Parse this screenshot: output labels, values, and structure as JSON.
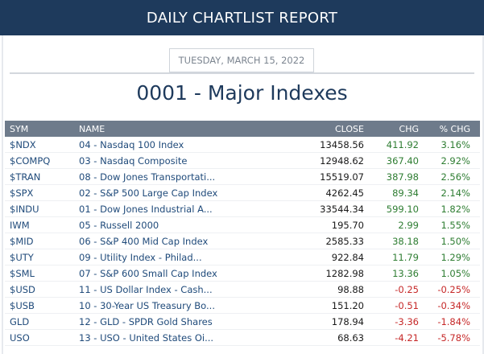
{
  "header": {
    "title": "DAILY CHARTLIST REPORT"
  },
  "report": {
    "date": "TUESDAY, MARCH 15, 2022",
    "title": "0001 - Major Indexes"
  },
  "table": {
    "columns": {
      "sym": "SYM",
      "name": "NAME",
      "close": "CLOSE",
      "chg": "CHG",
      "pct": "% CHG"
    },
    "rows": [
      {
        "sym": "$NDX",
        "name": "04 - Nasdaq 100 Index",
        "close": "13458.56",
        "chg": "411.92",
        "pct": "3.16%",
        "dir": "pos"
      },
      {
        "sym": "$COMPQ",
        "name": "03 - Nasdaq Composite",
        "close": "12948.62",
        "chg": "367.40",
        "pct": "2.92%",
        "dir": "pos"
      },
      {
        "sym": "$TRAN",
        "name": "08 - Dow Jones Transportati...",
        "close": "15519.07",
        "chg": "387.98",
        "pct": "2.56%",
        "dir": "pos"
      },
      {
        "sym": "$SPX",
        "name": "02 - S&P 500 Large Cap Index",
        "close": "4262.45",
        "chg": "89.34",
        "pct": "2.14%",
        "dir": "pos"
      },
      {
        "sym": "$INDU",
        "name": "01 - Dow Jones Industrial A...",
        "close": "33544.34",
        "chg": "599.10",
        "pct": "1.82%",
        "dir": "pos"
      },
      {
        "sym": "IWM",
        "name": "05 - Russell 2000",
        "close": "195.70",
        "chg": "2.99",
        "pct": "1.55%",
        "dir": "pos"
      },
      {
        "sym": "$MID",
        "name": "06 - S&P 400 Mid Cap Index",
        "close": "2585.33",
        "chg": "38.18",
        "pct": "1.50%",
        "dir": "pos"
      },
      {
        "sym": "$UTY",
        "name": "09 - Utility Index - Philad...",
        "close": "922.84",
        "chg": "11.79",
        "pct": "1.29%",
        "dir": "pos"
      },
      {
        "sym": "$SML",
        "name": "07 - S&P 600 Small Cap Index",
        "close": "1282.98",
        "chg": "13.36",
        "pct": "1.05%",
        "dir": "pos"
      },
      {
        "sym": "$USD",
        "name": "11 - US Dollar Index - Cash...",
        "close": "98.88",
        "chg": "-0.25",
        "pct": "-0.25%",
        "dir": "neg"
      },
      {
        "sym": "$USB",
        "name": "10 - 30-Year US Treasury Bo...",
        "close": "151.20",
        "chg": "-0.51",
        "pct": "-0.34%",
        "dir": "neg"
      },
      {
        "sym": "GLD",
        "name": "12 - GLD - SPDR Gold Shares",
        "close": "178.94",
        "chg": "-3.36",
        "pct": "-1.84%",
        "dir": "neg"
      },
      {
        "sym": "USO",
        "name": "13 - USO - United States Oi...",
        "close": "68.63",
        "chg": "-4.21",
        "pct": "-5.78%",
        "dir": "neg"
      }
    ]
  },
  "colors": {
    "header_bg": "#1e3a5c",
    "table_header_bg": "#6e7b8b",
    "positive": "#2e7d32",
    "negative": "#c62828",
    "link": "#1f4a7a"
  }
}
